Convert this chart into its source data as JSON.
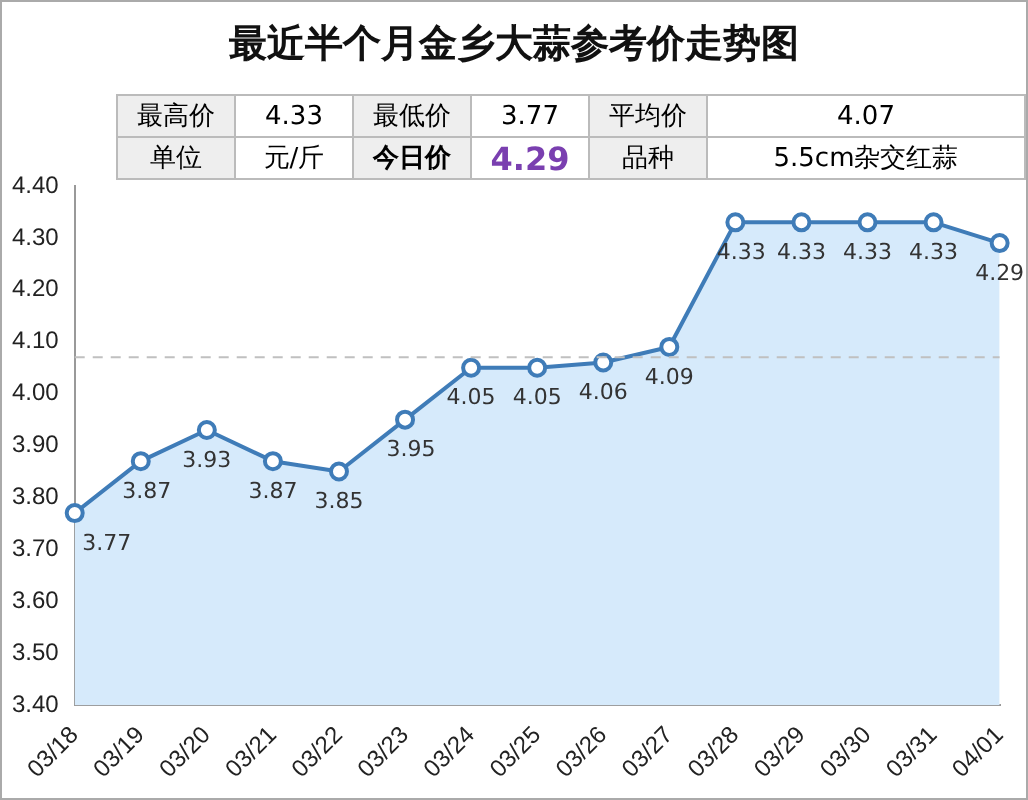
{
  "chart_data": {
    "type": "area",
    "title": "最近半个月金乡大蒜参考价走势图",
    "annotations": [
      "最高价",
      "4.33",
      "最低价",
      "3.77",
      "平均价",
      "4.07",
      "单位",
      "元/斤",
      "今日价",
      "4.29",
      "品种",
      "5.5cm杂交红蒜"
    ],
    "categories": [
      "03/18",
      "03/19",
      "03/20",
      "03/21",
      "03/22",
      "03/23",
      "03/24",
      "03/25",
      "03/26",
      "03/27",
      "03/28",
      "03/29",
      "03/30",
      "03/31",
      "04/01"
    ],
    "series": [
      {
        "color": "#3f7cb8",
        "values": [
          3.77,
          3.87,
          3.93,
          3.87,
          3.85,
          3.95,
          4.05,
          4.05,
          4.06,
          4.09,
          4.33,
          4.33,
          4.33,
          4.33,
          4.29
        ]
      }
    ],
    "ylim": [
      3.4,
      4.4
    ],
    "yticks": [
      {
        "value": 3.4,
        "label": "3.40"
      },
      {
        "value": 3.5,
        "label": "3.50"
      },
      {
        "value": 3.6,
        "label": "3.60"
      },
      {
        "value": 3.7,
        "label": "3.70"
      },
      {
        "value": 3.8,
        "label": "3.80"
      },
      {
        "value": 3.9,
        "label": "3.90"
      },
      {
        "value": 4.0,
        "label": "4.00"
      },
      {
        "value": 4.1,
        "label": "4.10"
      },
      {
        "value": 4.2,
        "label": "4.20"
      },
      {
        "value": 4.3,
        "label": "4.30"
      },
      {
        "value": 4.4,
        "label": "4.40"
      }
    ],
    "ref_lines": [
      {
        "axis": "y",
        "value": 4.07,
        "color": "#c0c0c0",
        "line_style": "dashed"
      }
    ],
    "data_labels": true,
    "marker": "circle",
    "grid": false,
    "legend": false
  }
}
